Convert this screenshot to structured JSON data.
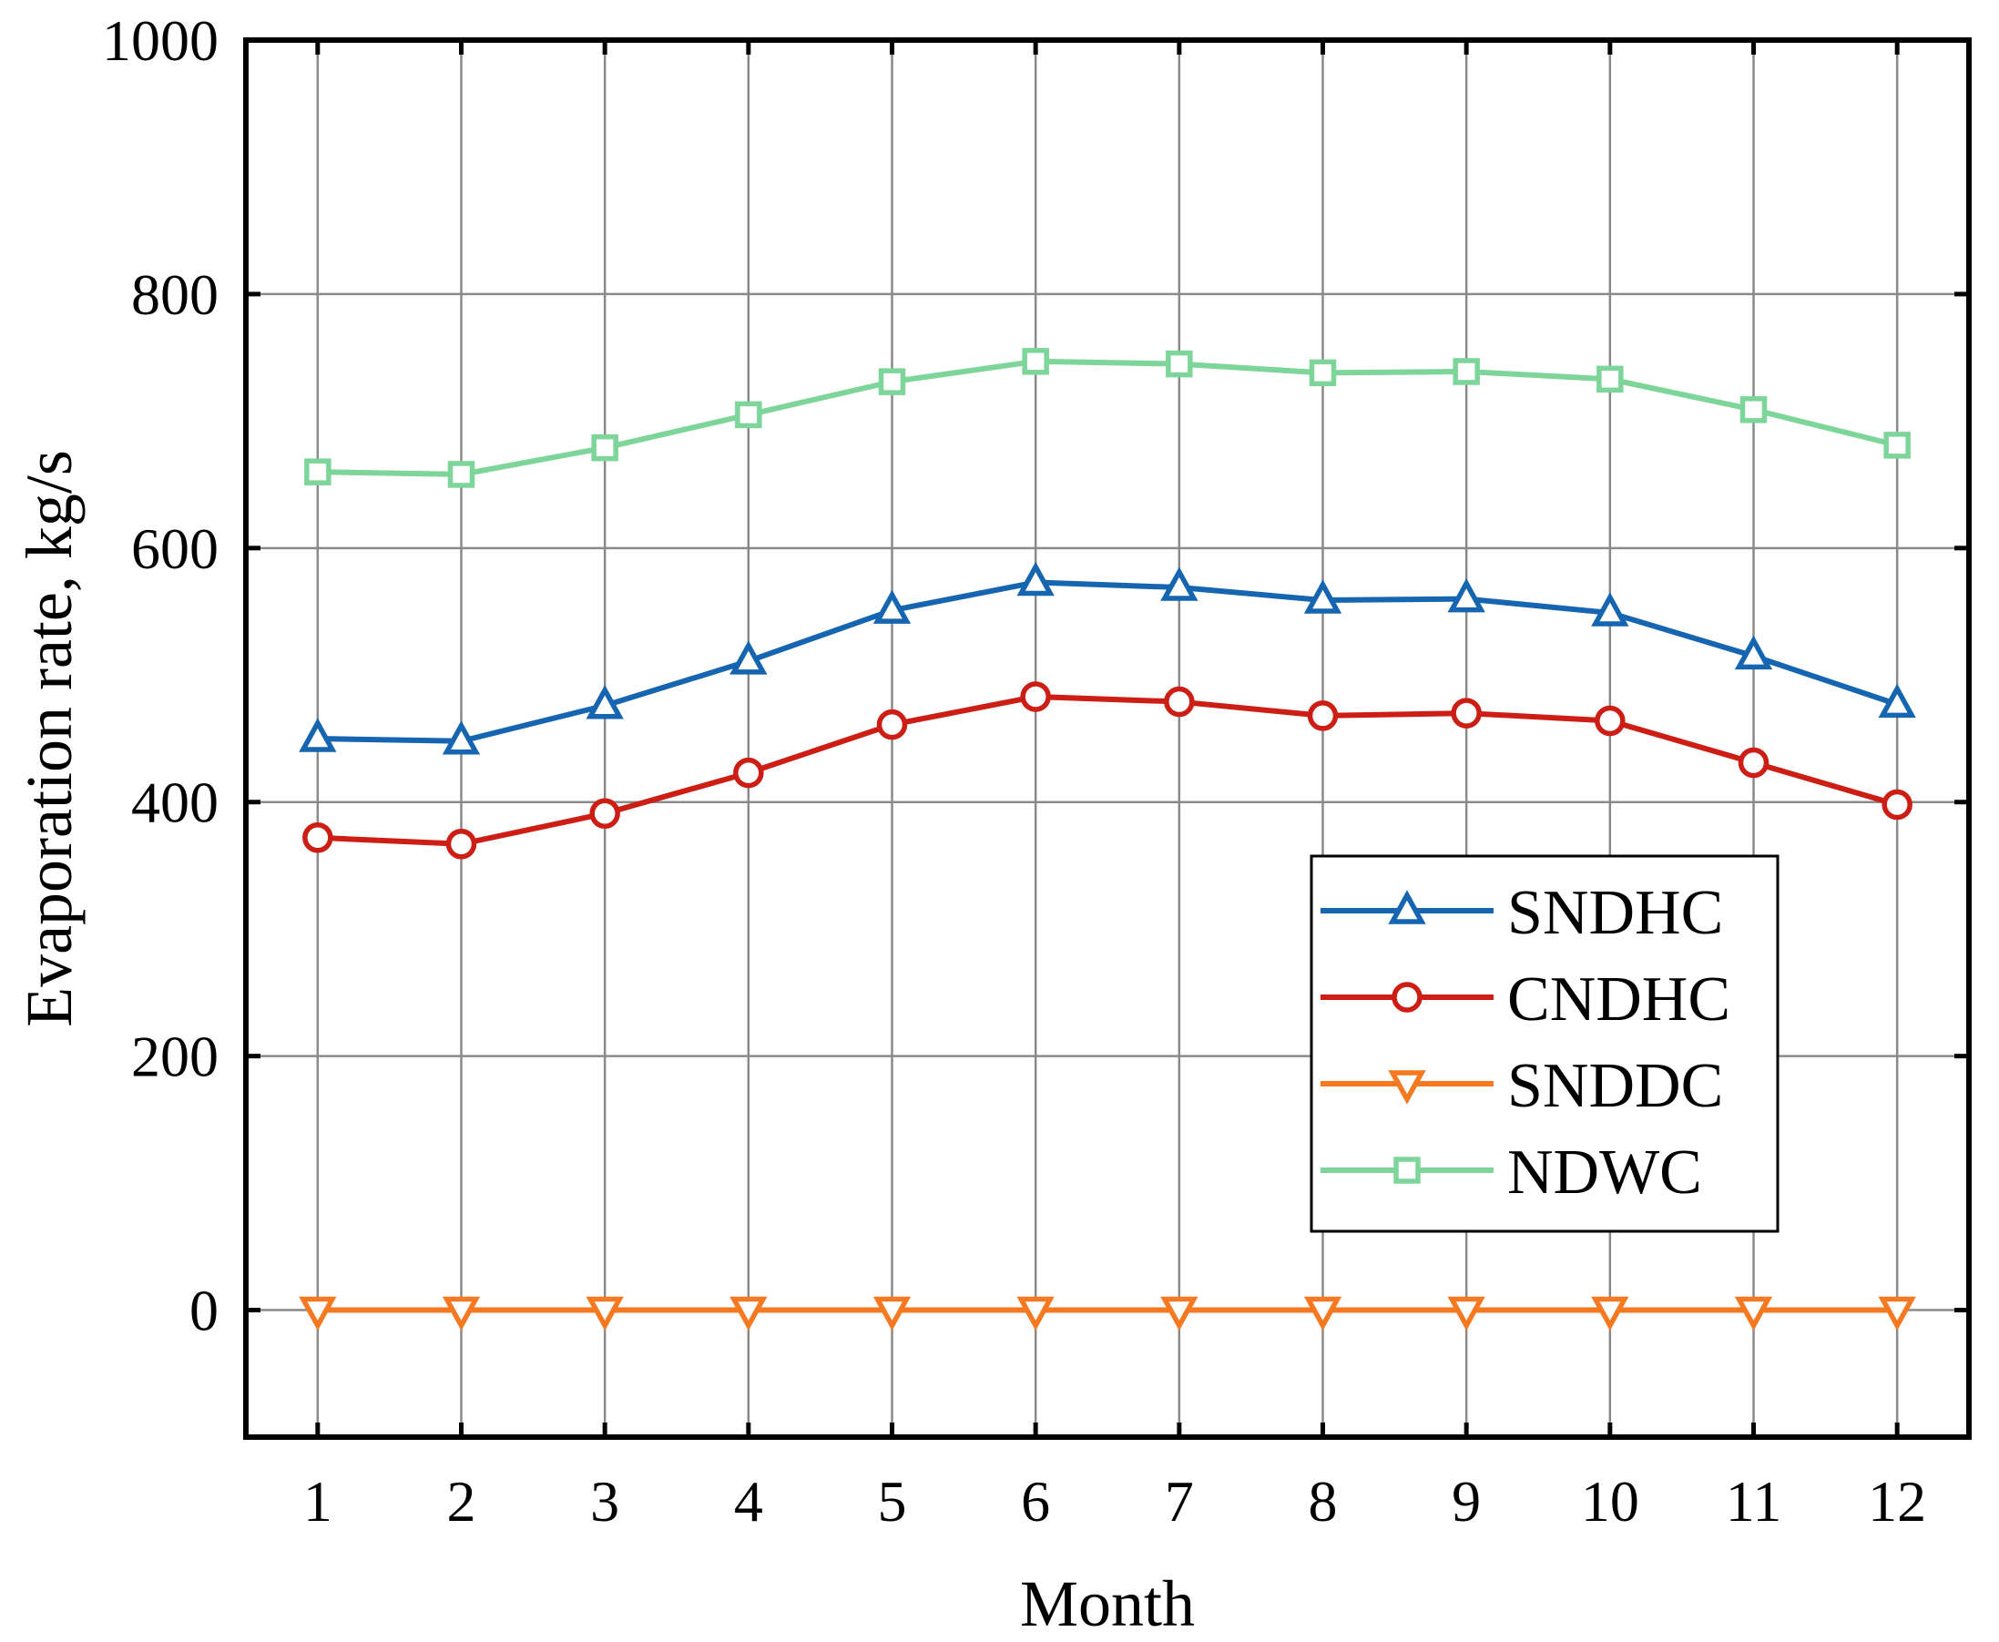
{
  "chart_data": {
    "type": "line",
    "title": "",
    "xlabel": "Month",
    "ylabel": "Evaporation rate, kg/s",
    "x": [
      1,
      2,
      3,
      4,
      5,
      6,
      7,
      8,
      9,
      10,
      11,
      12
    ],
    "x_tick_labels": [
      "1",
      "2",
      "3",
      "4",
      "5",
      "6",
      "7",
      "8",
      "9",
      "10",
      "11",
      "12"
    ],
    "xlim": [
      0.5,
      12.5
    ],
    "ylim": [
      -100,
      1000
    ],
    "y_ticks": [
      0,
      200,
      400,
      600,
      800,
      1000
    ],
    "y_tick_labels": [
      "0",
      "200",
      "400",
      "600",
      "800",
      "1000"
    ],
    "grid": true,
    "legend_position": "right",
    "series": [
      {
        "name": "SNDHC",
        "color": "#1565b0",
        "marker": "triangle-up",
        "values": [
          450,
          448,
          476,
          511,
          551,
          573,
          569,
          559,
          560,
          549,
          515,
          477
        ]
      },
      {
        "name": "CNDHC",
        "color": "#cc1e14",
        "marker": "circle",
        "values": [
          372,
          367,
          391,
          423,
          461,
          483,
          479,
          468,
          470,
          464,
          431,
          398
        ]
      },
      {
        "name": "SNDDC",
        "color": "#f47920",
        "marker": "triangle-down",
        "values": [
          0,
          0,
          0,
          0,
          0,
          0,
          0,
          0,
          0,
          0,
          0,
          0
        ]
      },
      {
        "name": "NDWC",
        "color": "#7dd59a",
        "marker": "square",
        "values": [
          660,
          658,
          679,
          705,
          731,
          747,
          745,
          738,
          739,
          733,
          709,
          681
        ]
      }
    ]
  }
}
